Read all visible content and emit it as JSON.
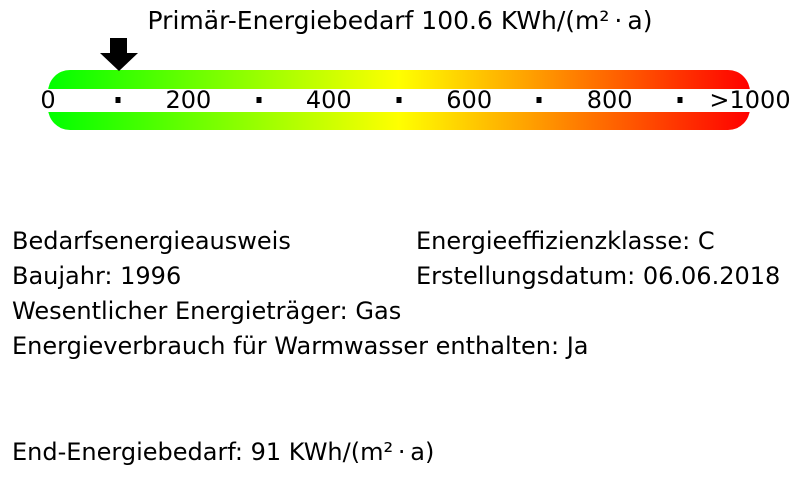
{
  "chart_data": {
    "type": "gauge",
    "title": "Primär-Energiebedarf 100.6 KWh/(m² · a)",
    "value": 100.6,
    "unit": "KWh/(m² · a)",
    "axis_min": 0,
    "axis_max": 1000,
    "tick_labels": [
      "0",
      "200",
      "400",
      "600",
      "800",
      ">1000"
    ],
    "tick_values": [
      0,
      200,
      400,
      600,
      800,
      1000
    ],
    "minor_tick_values": [
      100,
      300,
      500,
      700,
      900
    ],
    "gradient_stops": [
      {
        "pos": 0,
        "color": "#00ff00"
      },
      {
        "pos": 10,
        "color": "#33ff00"
      },
      {
        "pos": 20,
        "color": "#66ff00"
      },
      {
        "pos": 30,
        "color": "#99ff00"
      },
      {
        "pos": 40,
        "color": "#ccff00"
      },
      {
        "pos": 50,
        "color": "#ffff00"
      },
      {
        "pos": 60,
        "color": "#ffcc00"
      },
      {
        "pos": 70,
        "color": "#ff9900"
      },
      {
        "pos": 80,
        "color": "#ff6600"
      },
      {
        "pos": 90,
        "color": "#ff3300"
      },
      {
        "pos": 100,
        "color": "#ff0000"
      }
    ],
    "pointer": {
      "shape": "down-arrow",
      "color": "#000000",
      "value": 100.6
    },
    "band_color": "#ffffff",
    "text_color": "#000000",
    "legend_position": "none",
    "grid": false
  },
  "details": {
    "left_column": [
      "Bedarfsenergieausweis",
      "Baujahr: 1996",
      "Wesentlicher Energieträger: Gas",
      "Energieverbrauch für Warmwasser enthalten: Ja"
    ],
    "right_column": [
      "Energieeffizienzklasse: C",
      "Erstellungsdatum: 06.06.2018"
    ]
  },
  "footer": {
    "text": "End-Energiebedarf: 91 KWh/(m² · a)"
  }
}
